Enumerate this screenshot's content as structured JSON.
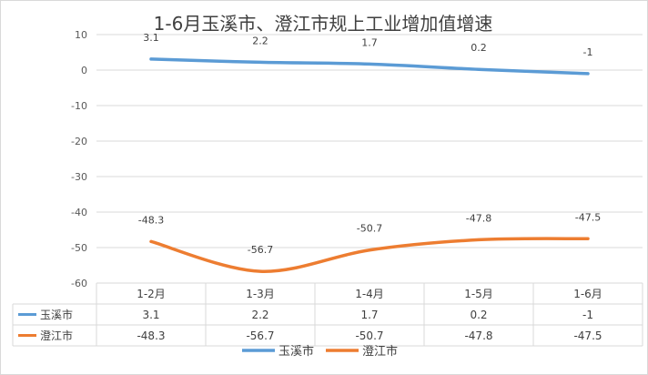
{
  "chart_data": {
    "type": "line",
    "title": "1-6月玉溪市、澄江市规上工业增加值增速",
    "categories": [
      "1-2月",
      "1-3月",
      "1-4月",
      "1-5月",
      "1-6月"
    ],
    "y_ticks": [
      "10",
      "0",
      "-10",
      "-20",
      "-30",
      "-40",
      "-50",
      "-60"
    ],
    "ylim": [
      -60,
      10
    ],
    "grid": true,
    "legend_position": "bottom",
    "series": [
      {
        "name": "玉溪市",
        "color": "#5b9bd5",
        "values": [
          3.1,
          2.2,
          1.7,
          0.2,
          -1
        ],
        "labels": [
          "3.1",
          "2.2",
          "1.7",
          "0.2",
          "-1"
        ]
      },
      {
        "name": "澄江市",
        "color": "#ed7d31",
        "values": [
          -48.3,
          -56.7,
          -50.7,
          -47.8,
          -47.5
        ],
        "labels": [
          "-48.3",
          "-56.7",
          "-50.7",
          "-47.8",
          "-47.5"
        ]
      }
    ]
  }
}
